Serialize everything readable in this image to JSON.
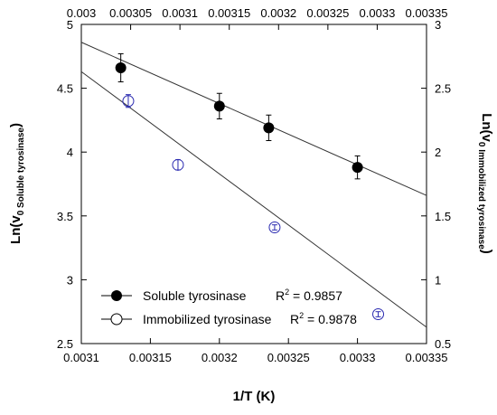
{
  "chart_data": {
    "type": "scatter",
    "xlabel": "1/T (K)",
    "ylabel_left": {
      "main": "Ln(v",
      "sub": "0 Soluble tyrosinase",
      "close": ")"
    },
    "ylabel_right": {
      "main": "Ln(v",
      "sub": "0 Immobilized tyrosinase",
      "close": ")"
    },
    "x_bottom": {
      "range": [
        0.0031,
        0.00335
      ],
      "ticks": [
        "0.0031",
        "0.00315",
        "0.0032",
        "0.00325",
        "0.0033",
        "0.00335"
      ]
    },
    "x_top": {
      "range": [
        0.003,
        0.00335
      ],
      "ticks": [
        "0.003",
        "0.00305",
        "0.0031",
        "0.00315",
        "0.0032",
        "0.00325",
        "0.0033",
        "0.00335"
      ]
    },
    "y_left": {
      "range": [
        2.5,
        5.0
      ],
      "ticks": [
        "2.5",
        "3",
        "3.5",
        "4",
        "4.5",
        "5"
      ]
    },
    "y_right": {
      "range": [
        0.5,
        3.0
      ],
      "ticks": [
        "0.5",
        "1",
        "1.5",
        "2",
        "2.5",
        "3"
      ]
    },
    "grid": false,
    "legend_position": "bottom-left",
    "series": [
      {
        "name": "Soluble tyrosinase",
        "marker": "filled-circle",
        "color": "#000000",
        "x_axis": "top",
        "y_axis": "left",
        "x": [
          0.00304,
          0.00314,
          0.00319,
          0.00328
        ],
        "y": [
          4.66,
          4.36,
          4.19,
          3.88
        ],
        "error": [
          0.11,
          0.1,
          0.1,
          0.09
        ],
        "fit": {
          "x": [
            0.003,
            0.00335
          ],
          "y": [
            4.86,
            3.66
          ]
        },
        "r2_label": "R",
        "r2_sup": "2",
        "r2_value": " = 0.9857"
      },
      {
        "name": "Immobilized tyrosinase",
        "marker": "open-circle",
        "color": "#2a2ab0",
        "x_axis": "bottom",
        "y_axis": "right",
        "x": [
          0.003134,
          0.00317,
          0.00324,
          0.003315
        ],
        "y": [
          2.4,
          1.9,
          1.41,
          0.73
        ],
        "error": [
          0.05,
          0.04,
          0.02,
          0.02
        ],
        "fit": {
          "x": [
            0.0031,
            0.003366
          ],
          "y": [
            2.63,
            0.5
          ]
        },
        "r2_label": "R",
        "r2_sup": "2",
        "r2_value": " = 0.9878"
      }
    ]
  }
}
